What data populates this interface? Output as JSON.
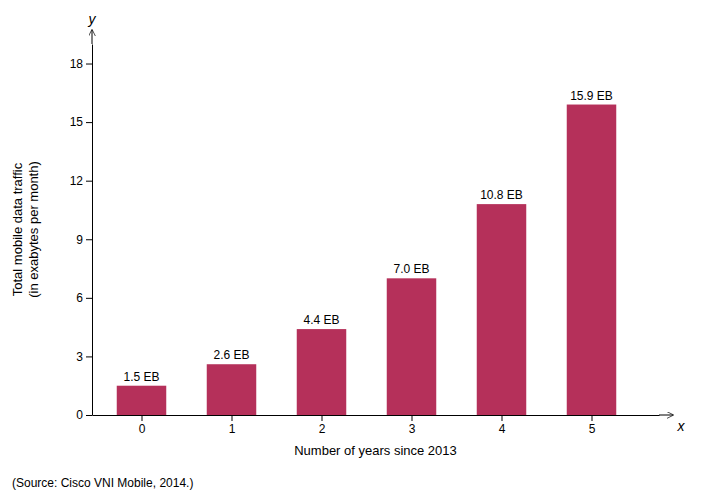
{
  "chart_data": {
    "type": "bar",
    "x": [
      0,
      1,
      2,
      3,
      4,
      5
    ],
    "values": [
      1.5,
      2.6,
      4.4,
      7.0,
      10.8,
      15.9
    ],
    "value_labels": [
      "1.5 EB",
      "2.6 EB",
      "4.4 EB",
      "7.0 EB",
      "10.8 EB",
      "15.9 EB"
    ],
    "data_labels": true,
    "color": "#b5305a",
    "xlabel": "Number of years since 2013",
    "ylabel": "Total mobile data traffic\n(in exabytes per month)",
    "xlim": [
      -0.55,
      5.75
    ],
    "xticks": [
      0,
      1,
      2,
      3,
      4,
      5
    ],
    "ylim": [
      0,
      19
    ],
    "yticks": [
      0,
      3,
      6,
      9,
      12,
      15,
      18
    ],
    "grid": false,
    "annotations": [
      "y",
      "x",
      "(Source: Cisco VNI Mobile, 2014.)"
    ]
  }
}
